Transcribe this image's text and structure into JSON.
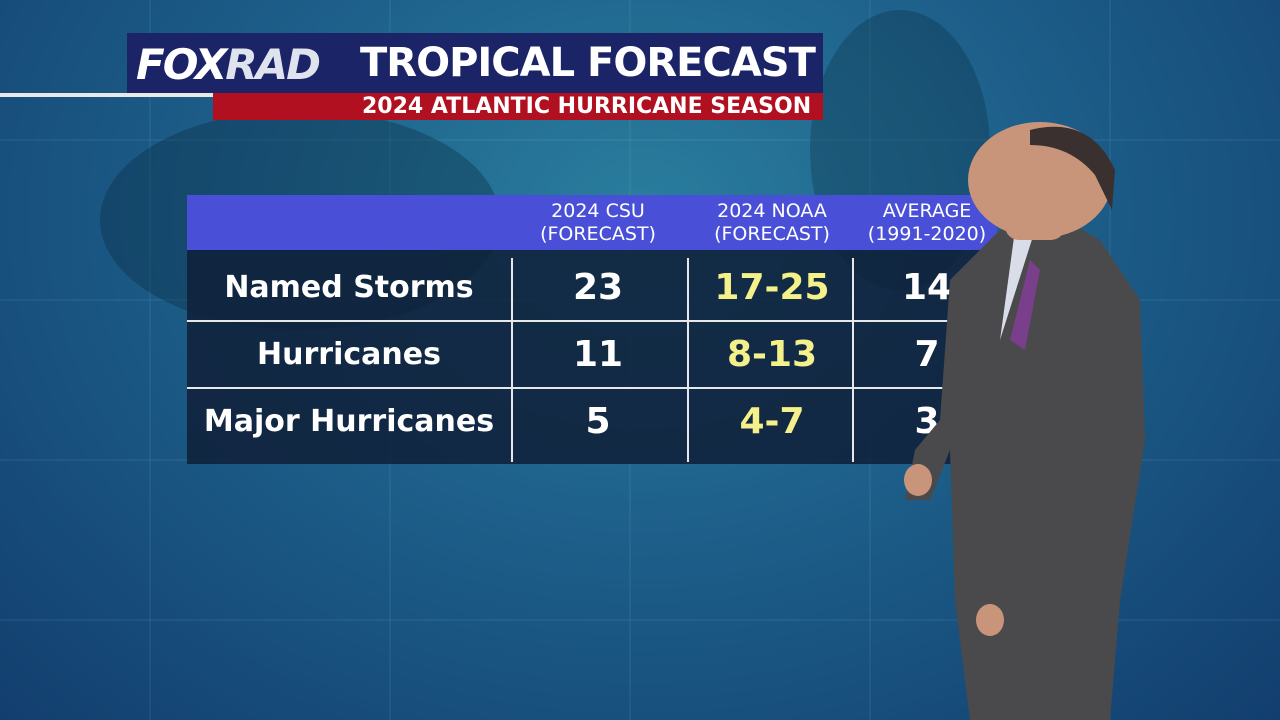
{
  "header": {
    "logo_left": "FOX",
    "logo_right": "RAD",
    "title": "TROPICAL FORECAST",
    "subtitle": "2024 ATLANTIC HURRICANE SEASON"
  },
  "table": {
    "columns": [
      {
        "line1": "2024 CSU",
        "line2": "(FORECAST)"
      },
      {
        "line1": "2024 NOAA",
        "line2": "(FORECAST)"
      },
      {
        "line1": "AVERAGE",
        "line2": "(1991-2020)"
      }
    ],
    "rows": [
      {
        "label": "Named Storms",
        "cells": [
          23,
          "17-25",
          14
        ]
      },
      {
        "label": "Hurricanes",
        "cells": [
          11,
          "8-13",
          7
        ]
      },
      {
        "label": "Major Hurricanes",
        "cells": [
          5,
          "4-7",
          3
        ]
      }
    ]
  }
}
